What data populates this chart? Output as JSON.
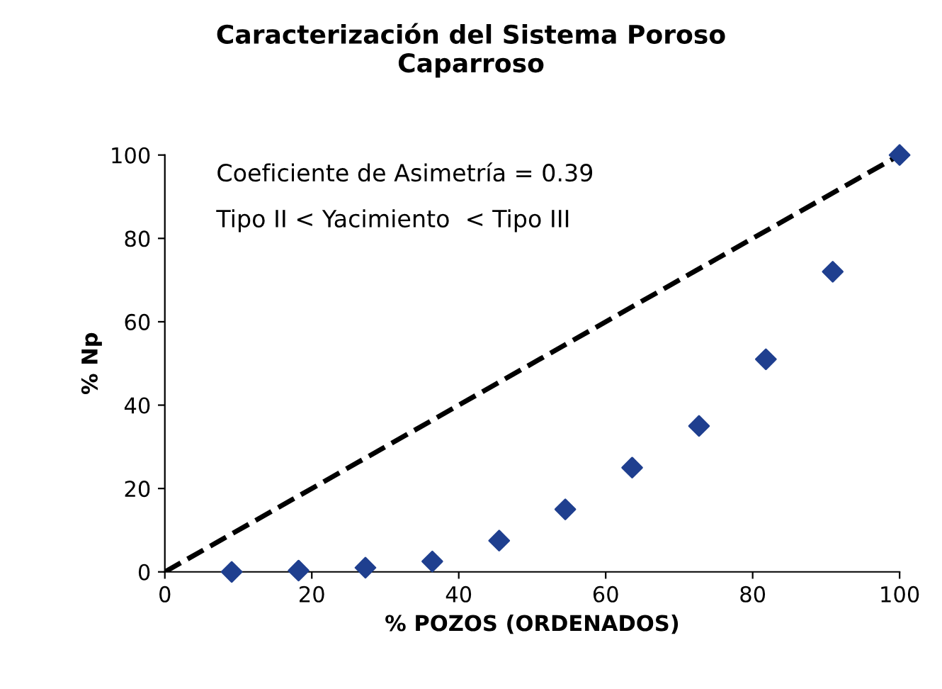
{
  "chart_data": {
    "type": "scatter",
    "title": "Caracterización del Sistema Poroso\nCaparroso",
    "xlabel": "% POZOS (ORDENADOS)",
    "ylabel": "% Np",
    "annotations": [
      "Coeficiente de Asimetría = 0.39",
      "Tipo II < Yacimiento  < Tipo III"
    ],
    "series": [
      {
        "color": "#1f3f8f",
        "marker": "diamond",
        "x": [
          9.1,
          18.2,
          27.3,
          36.4,
          45.5,
          54.5,
          63.6,
          72.7,
          81.8,
          90.9,
          100
        ],
        "values": [
          0,
          0.3,
          1,
          2.5,
          7.5,
          15,
          25,
          35,
          51,
          72,
          100
        ]
      },
      {
        "type": "line",
        "color": "#000000",
        "line_style": "dashed",
        "x": [
          0,
          100
        ],
        "values": [
          0,
          100
        ]
      }
    ],
    "xlim": [
      0,
      100
    ],
    "ylim": [
      0,
      100
    ],
    "xticks": [
      0,
      20,
      40,
      60,
      80,
      100
    ],
    "yticks": [
      0,
      20,
      40,
      60,
      80,
      100
    ],
    "grid": false
  }
}
